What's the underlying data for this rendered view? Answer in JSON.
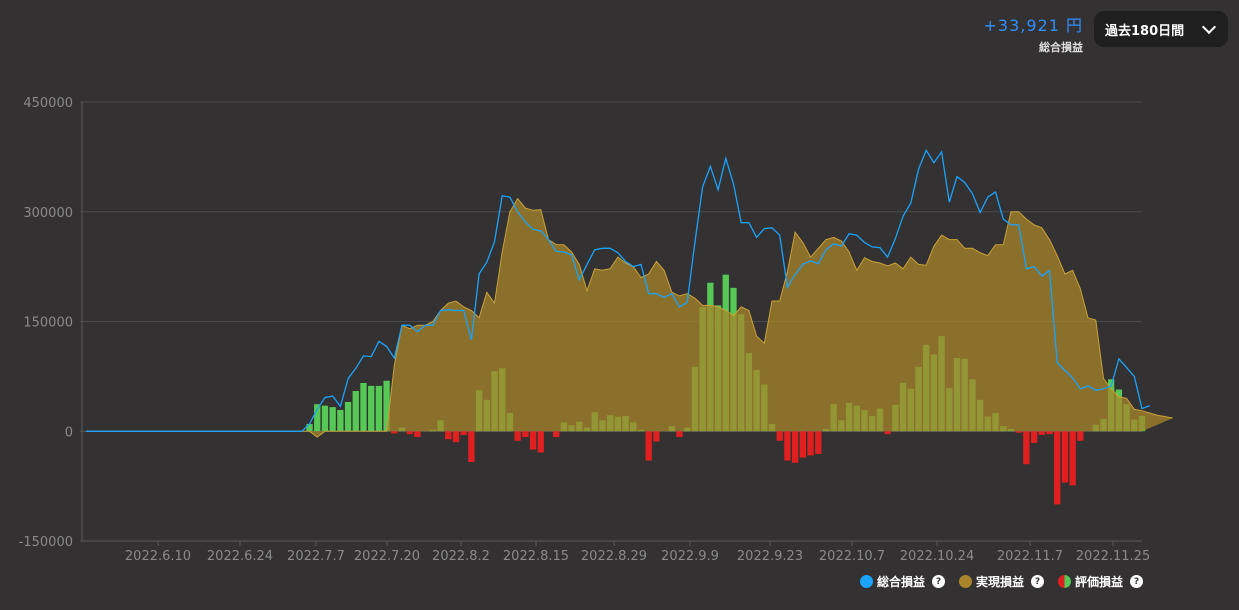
{
  "summary": {
    "total_value": "+33,921 円",
    "total_label": "総合損益"
  },
  "period": {
    "selected": "過去180日間"
  },
  "legend": {
    "items": [
      {
        "label": "総合損益",
        "color": "#1aa3ff",
        "icon": "dot-icon"
      },
      {
        "label": "実現損益",
        "color": "#a8852a",
        "icon": "dot-icon"
      },
      {
        "label": "評価損益",
        "colors": [
          "#e02020",
          "#55c855"
        ],
        "icon": "split-dot-icon"
      }
    ]
  },
  "chart_data": {
    "type": "bar+line+area",
    "ylim": [
      -150000,
      450000
    ],
    "yticks": [
      450000,
      300000,
      150000,
      0,
      -150000
    ],
    "ytick_labels": [
      "450000",
      "300000",
      "150000",
      "0",
      "-150000"
    ],
    "xticks": [
      "2022.6.10",
      "2022.6.24",
      "2022.7.7",
      "2022.7.20",
      "2022.8.2",
      "2022.8.15",
      "2022.8.29",
      "2022.9.9",
      "2022.9.23",
      "2022.10.7",
      "2022.10.24",
      "2022.11.7",
      "2022.11.25"
    ],
    "series": [
      {
        "name": "評価損益",
        "type": "bar",
        "values": [
          0,
          0,
          0,
          0,
          0,
          0,
          0,
          0,
          0,
          0,
          0,
          0,
          0,
          0,
          0,
          0,
          0,
          0,
          0,
          0,
          0,
          0,
          0,
          0,
          0,
          0,
          0,
          0,
          0,
          10000,
          37000,
          35000,
          33000,
          29000,
          40000,
          55000,
          66000,
          62000,
          62000,
          69000,
          -3000,
          5000,
          -4000,
          -8000,
          0,
          2000,
          15000,
          -11000,
          -15000,
          -5000,
          -42000,
          56000,
          43000,
          82000,
          86000,
          25000,
          -13000,
          -8000,
          -25000,
          -29000,
          0,
          -8000,
          12000,
          8000,
          13000,
          5000,
          26000,
          15000,
          22000,
          20000,
          21000,
          12000,
          2000,
          -40000,
          -14000,
          0,
          7000,
          -8000,
          5000,
          88000,
          170000,
          203000,
          172000,
          214000,
          196000,
          160000,
          107000,
          84000,
          64000,
          10000,
          -13000,
          -40000,
          -43000,
          -36000,
          -33000,
          -31000,
          3000,
          37000,
          15000,
          39000,
          35000,
          29000,
          21000,
          31000,
          -4000,
          36000,
          66000,
          58000,
          88000,
          118000,
          105000,
          130000,
          59000,
          100000,
          99000,
          71000,
          43000,
          20000,
          25000,
          7000,
          3000,
          -2000,
          -45000,
          -16000,
          -5000,
          -4000,
          -100000,
          -70000,
          -74000,
          -13000,
          0,
          9000,
          17000,
          71000,
          57000,
          37000,
          16000,
          21000
        ]
      },
      {
        "name": "実現損益",
        "type": "area",
        "values": [
          0,
          0,
          0,
          0,
          0,
          0,
          0,
          0,
          0,
          0,
          0,
          0,
          0,
          0,
          0,
          0,
          0,
          0,
          0,
          0,
          0,
          0,
          0,
          0,
          0,
          0,
          0,
          0,
          0,
          0,
          -8000,
          0,
          0,
          0,
          0,
          0,
          0,
          0,
          0,
          0,
          90000,
          145000,
          140000,
          145000,
          145000,
          150000,
          165000,
          175000,
          178000,
          170000,
          165000,
          155000,
          190000,
          175000,
          245000,
          300000,
          318000,
          305000,
          302000,
          303000,
          262000,
          255000,
          255000,
          245000,
          228000,
          192000,
          222000,
          220000,
          222000,
          238000,
          230000,
          225000,
          210000,
          215000,
          232000,
          220000,
          190000,
          185000,
          188000,
          182000,
          172000,
          172000,
          170000,
          165000,
          158000,
          170000,
          165000,
          130000,
          120000,
          178000,
          178000,
          218000,
          272000,
          258000,
          238000,
          250000,
          262000,
          265000,
          260000,
          245000,
          220000,
          237000,
          232000,
          230000,
          226000,
          230000,
          222000,
          238000,
          228000,
          227000,
          253000,
          268000,
          262000,
          262000,
          250000,
          250000,
          244000,
          240000,
          255000,
          255000,
          300000,
          300000,
          290000,
          282000,
          278000,
          262000,
          240000,
          215000,
          220000,
          195000,
          155000,
          152000,
          72000,
          58000,
          47000,
          45000,
          30000,
          28000,
          25000,
          22000,
          20000,
          18000
        ]
      },
      {
        "name": "総合損益",
        "type": "line",
        "values": [
          0,
          0,
          0,
          0,
          0,
          0,
          0,
          0,
          0,
          0,
          0,
          0,
          0,
          0,
          0,
          0,
          0,
          0,
          0,
          0,
          0,
          0,
          0,
          0,
          0,
          0,
          0,
          0,
          0,
          10000,
          30000,
          46000,
          48000,
          34000,
          72000,
          86000,
          103000,
          102000,
          123000,
          116000,
          100000,
          145000,
          145000,
          136000,
          145000,
          145000,
          165000,
          166000,
          165000,
          165000,
          125000,
          215000,
          231000,
          259000,
          322000,
          320000,
          300000,
          286000,
          276000,
          274000,
          262000,
          246000,
          245000,
          241000,
          207000,
          228000,
          248000,
          250000,
          250000,
          244000,
          232000,
          225000,
          228000,
          188000,
          188000,
          183000,
          188000,
          170000,
          176000,
          258000,
          334000,
          362000,
          330000,
          373000,
          338000,
          285000,
          285000,
          265000,
          277000,
          278000,
          268000,
          197000,
          214000,
          228000,
          233000,
          229000,
          248000,
          256000,
          253000,
          270000,
          268000,
          258000,
          252000,
          251000,
          238000,
          263000,
          294000,
          312000,
          358000,
          384000,
          367000,
          382000,
          313000,
          348000,
          340000,
          325000,
          299000,
          320000,
          327000,
          290000,
          282000,
          282000,
          222000,
          225000,
          212000,
          220000,
          94000,
          83000,
          73000,
          58000,
          62000,
          56000,
          58000,
          62000,
          99000,
          87000,
          75000,
          31000,
          35000
        ]
      }
    ]
  }
}
